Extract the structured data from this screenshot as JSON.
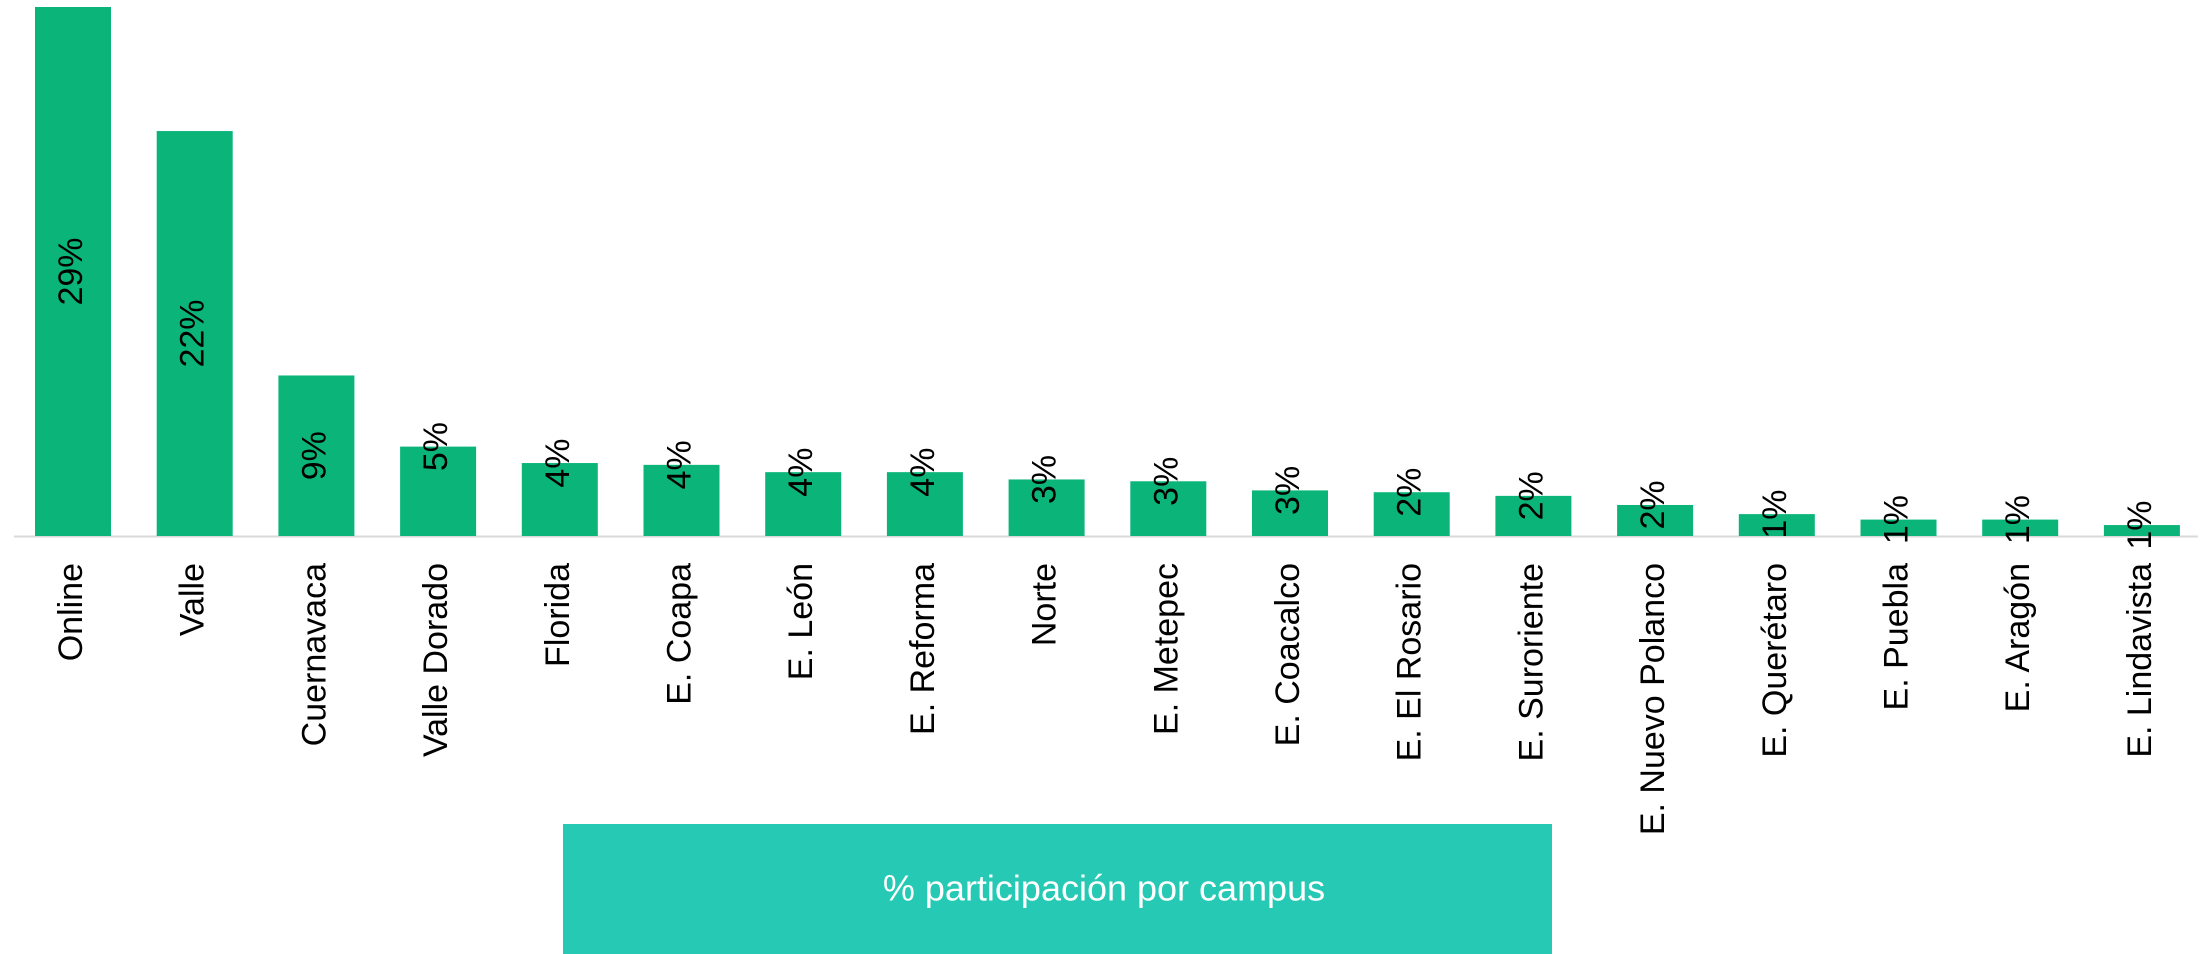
{
  "chart_data": {
    "type": "bar",
    "title": "% participación por campus",
    "categories": [
      "Online",
      "Valle",
      "Cuernavaca",
      "Valle Dorado",
      "Florida",
      "E. Coapa",
      "E. León",
      "E. Reforma",
      "Norte",
      "E. Metepec",
      "E. Coacalco",
      "E. El Rosario",
      "E. Suroriente",
      "E. Nuevo Polanco",
      "E. Querétaro",
      "E. Puebla",
      "E. Aragón",
      "E. Lindavista"
    ],
    "values": [
      29,
      22.2,
      8.8,
      4.9,
      4.0,
      3.9,
      3.5,
      3.5,
      3.1,
      3.0,
      2.5,
      2.4,
      2.2,
      1.7,
      1.2,
      0.9,
      0.9,
      0.6
    ],
    "value_labels": [
      "29%",
      "22%",
      "9%",
      "5%",
      "4%",
      "4%",
      "4%",
      "4%",
      "3%",
      "3%",
      "3%",
      "2%",
      "2%",
      "2%",
      "1%",
      "1%",
      "1%",
      "1%"
    ],
    "color": "#0bb57a"
  }
}
